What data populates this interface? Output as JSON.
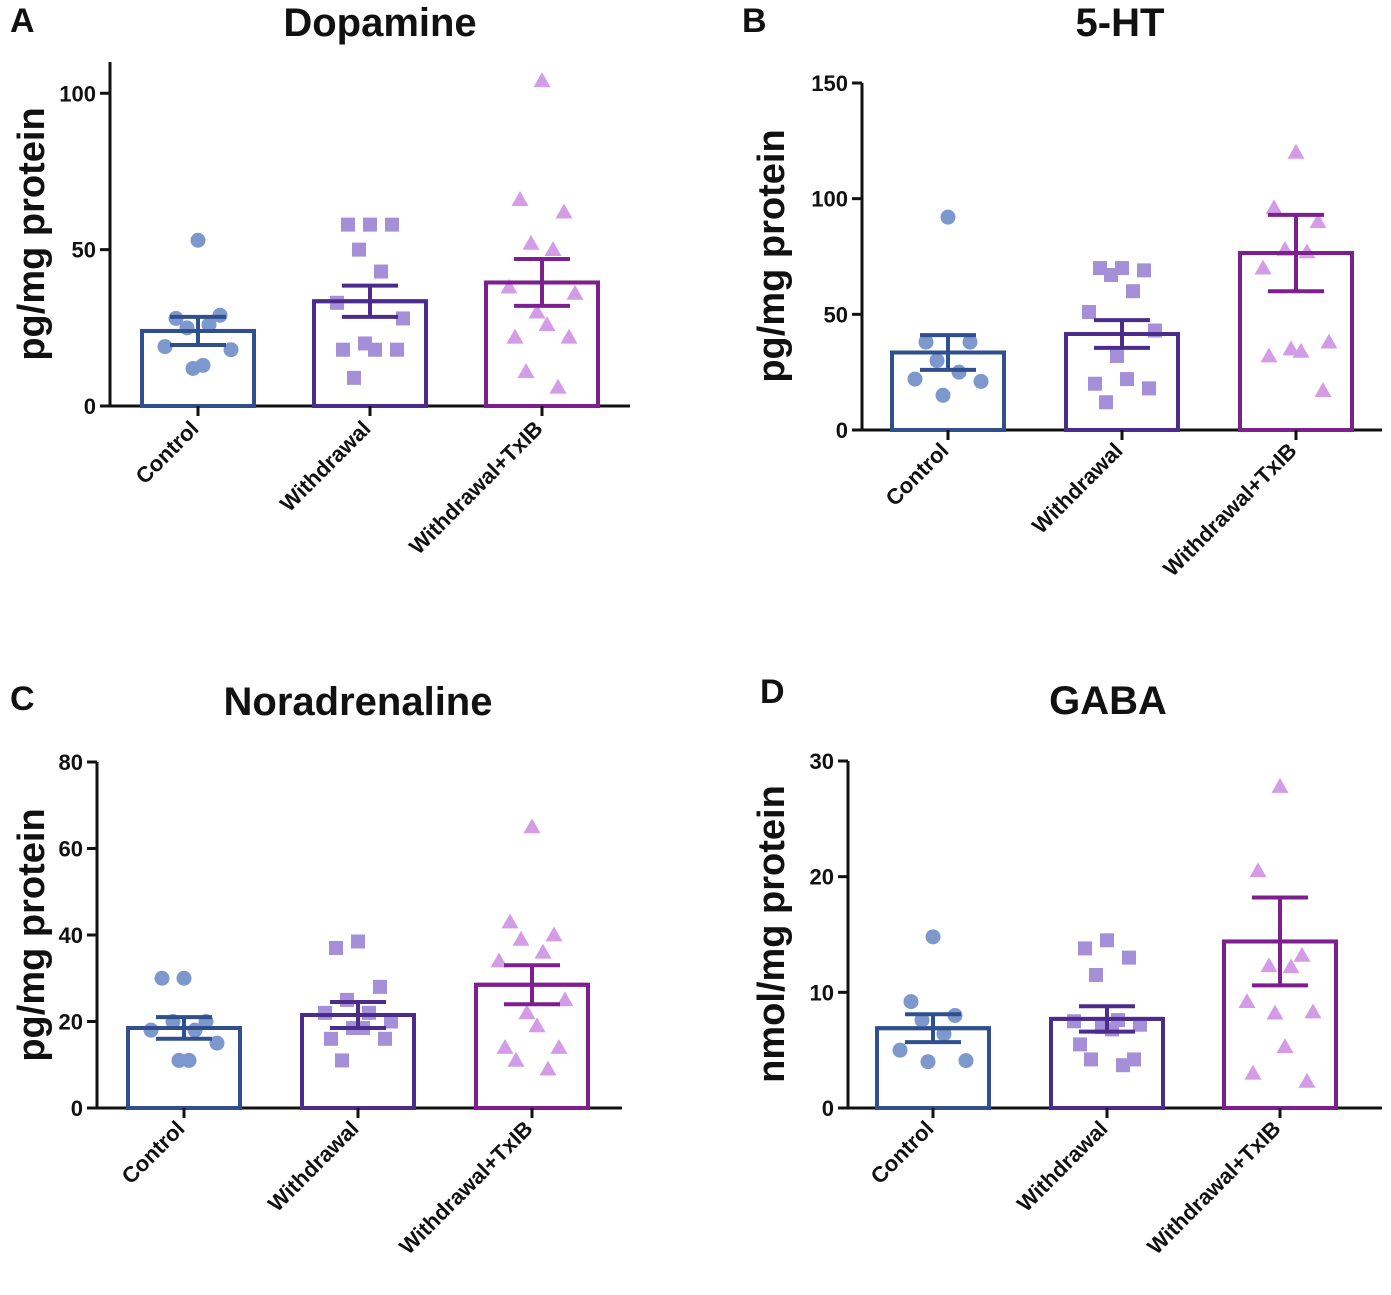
{
  "figure": {
    "colors": {
      "control_bar": "#2f4f8f",
      "control_pts": "#7c98cd",
      "withdrawal_bar": "#4b2c8c",
      "withdrawal_pts": "#a58fd8",
      "txib_bar": "#7d1f8f",
      "txib_pts": "#d49be6"
    }
  },
  "chart_data": [
    {
      "type": "bar",
      "panel": "A",
      "title": "Dopamine",
      "ylabel": "pg/mg protein",
      "xlabel": "",
      "ylim": [
        0,
        110
      ],
      "yticks": [
        0,
        50,
        100
      ],
      "categories": [
        "Control",
        "Withdrawal",
        "Withdrawal+TxIB"
      ],
      "series": [
        {
          "name": "Control",
          "mean": 24,
          "sem": 4.5,
          "marker": "circle",
          "points": [
            53,
            28,
            29,
            25,
            26,
            19,
            18,
            12,
            13
          ]
        },
        {
          "name": "Withdrawal",
          "mean": 33.5,
          "sem": 5,
          "marker": "square",
          "points": [
            58,
            58,
            58,
            50,
            43,
            33,
            28,
            20,
            18,
            18,
            18,
            9
          ]
        },
        {
          "name": "Withdrawal+TxIB",
          "mean": 39.5,
          "sem": 7.5,
          "marker": "triangle",
          "points": [
            104,
            66,
            62,
            52,
            50,
            38,
            36,
            30,
            26,
            22,
            22,
            11,
            6
          ]
        }
      ]
    },
    {
      "type": "bar",
      "panel": "B",
      "title": "5-HT",
      "ylabel": "pg/mg protein",
      "xlabel": "",
      "ylim": [
        0,
        150
      ],
      "yticks": [
        0,
        50,
        100,
        150
      ],
      "categories": [
        "Control",
        "Withdrawal",
        "Withdrawal+TxIB"
      ],
      "series": [
        {
          "name": "Control",
          "mean": 33.5,
          "sem": 7.5,
          "marker": "circle",
          "points": [
            92,
            38,
            38,
            30,
            25,
            22,
            21,
            15
          ]
        },
        {
          "name": "Withdrawal",
          "mean": 41.5,
          "sem": 6,
          "marker": "square",
          "points": [
            70,
            70,
            69,
            67,
            60,
            51,
            43,
            32,
            22,
            20,
            18,
            12
          ]
        },
        {
          "name": "Withdrawal+TxIB",
          "mean": 76.5,
          "sem": 16.5,
          "marker": "triangle",
          "points": [
            120,
            96,
            90,
            78,
            77,
            70,
            38,
            35,
            34,
            32,
            17
          ]
        }
      ]
    },
    {
      "type": "bar",
      "panel": "C",
      "title": "Noradrenaline",
      "ylabel": "pg/mg protein",
      "xlabel": "",
      "ylim": [
        0,
        80
      ],
      "yticks": [
        0,
        20,
        40,
        60,
        80
      ],
      "categories": [
        "Control",
        "Withdrawal",
        "Withdrawal+TxIB"
      ],
      "series": [
        {
          "name": "Control",
          "mean": 18.5,
          "sem": 2.5,
          "marker": "circle",
          "points": [
            30,
            30,
            20,
            20,
            18,
            18,
            15,
            11,
            11
          ]
        },
        {
          "name": "Withdrawal",
          "mean": 21.5,
          "sem": 3,
          "marker": "square",
          "points": [
            38.5,
            37,
            28,
            25,
            22,
            22,
            20,
            18.5,
            18.5,
            16,
            16,
            11
          ]
        },
        {
          "name": "Withdrawal+TxIB",
          "mean": 28.5,
          "sem": 4.5,
          "marker": "triangle",
          "points": [
            65,
            43,
            40,
            39,
            36,
            34,
            25,
            22,
            19,
            14,
            14,
            11,
            9
          ]
        }
      ]
    },
    {
      "type": "bar",
      "panel": "D",
      "title": "GABA",
      "ylabel": "nmol/mg protein",
      "xlabel": "",
      "ylim": [
        0,
        30
      ],
      "yticks": [
        0,
        10,
        20,
        30
      ],
      "categories": [
        "Control",
        "Withdrawal",
        "Withdrawal+TxIB"
      ],
      "series": [
        {
          "name": "Control",
          "mean": 6.9,
          "sem": 1.2,
          "marker": "circle",
          "points": [
            14.8,
            9.2,
            8,
            7.6,
            6.4,
            5,
            4.1,
            4
          ]
        },
        {
          "name": "Withdrawal",
          "mean": 7.7,
          "sem": 1.1,
          "marker": "square",
          "points": [
            14.5,
            13.8,
            13,
            11.5,
            7.6,
            7.5,
            7.2,
            7,
            6.8,
            5.5,
            4.2,
            4.2,
            3.7
          ]
        },
        {
          "name": "Withdrawal+TxIB",
          "mean": 14.4,
          "sem": 3.8,
          "marker": "triangle",
          "points": [
            27.8,
            20.5,
            13.2,
            12.3,
            12.2,
            9.2,
            8.3,
            8.2,
            5.3,
            3,
            2.3
          ]
        }
      ]
    }
  ]
}
